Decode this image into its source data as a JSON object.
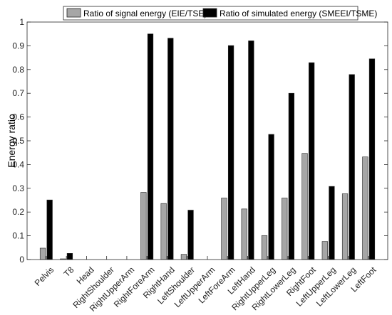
{
  "chart_data": {
    "type": "bar",
    "title": "",
    "xlabel": "",
    "ylabel": "Energy ratio",
    "ylim": [
      0,
      1
    ],
    "yticks": [
      0,
      0.1,
      0.2,
      0.3,
      0.4,
      0.5,
      0.6,
      0.7,
      0.8,
      0.9,
      1
    ],
    "ytick_labels": [
      "0",
      "0.1",
      "0.2",
      "0.3",
      "0.4",
      "0.5",
      "0.6",
      "0.7",
      "0.8",
      "0.9",
      "1"
    ],
    "grid": false,
    "legend_position": "top",
    "categories": [
      "Pelvis",
      "T8",
      "Head",
      "RightShoulder",
      "RightUpperArm",
      "RightForeArm",
      "RightHand",
      "LeftShoulder",
      "LeftUpperArm",
      "LeftForeArm",
      "LeftHand",
      "RightUpperLeg",
      "RightLowerLeg",
      "RightFoot",
      "LeftUpperLeg",
      "LeftLowerLeg",
      "LeftFoot"
    ],
    "series": [
      {
        "name": "Ratio of signal energy (EIE/TSE)",
        "color": "#a6a6a6",
        "values": [
          0.048,
          0.003,
          0,
          0,
          0,
          0.283,
          0.236,
          0.022,
          0,
          0.259,
          0.213,
          0.101,
          0.259,
          0.447,
          0.076,
          0.277,
          0.432
        ]
      },
      {
        "name": "Ratio of simulated energy (SMEEI/TSME)",
        "color": "#000000",
        "values": [
          0.251,
          0.026,
          0,
          0,
          0,
          0.95,
          0.932,
          0.208,
          0,
          0.901,
          0.921,
          0.527,
          0.7,
          0.829,
          0.308,
          0.779,
          0.845
        ]
      }
    ]
  }
}
